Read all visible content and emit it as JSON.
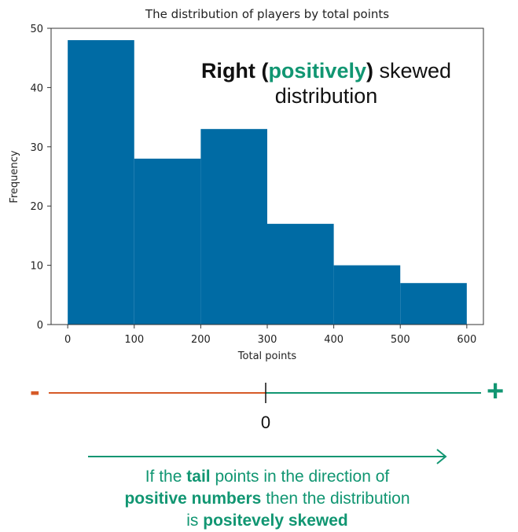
{
  "chart_data": {
    "type": "bar",
    "subtype": "histogram",
    "title": "The distribution of players by total points",
    "xlabel": "Total points",
    "ylabel": "Frequency",
    "bins": [
      [
        0,
        100
      ],
      [
        100,
        200
      ],
      [
        200,
        300
      ],
      [
        300,
        400
      ],
      [
        400,
        500
      ],
      [
        500,
        600
      ]
    ],
    "values": [
      48,
      28,
      33,
      17,
      10,
      7
    ],
    "xlim": [
      -25,
      625
    ],
    "ylim": [
      0,
      50
    ],
    "xticks": [
      0,
      100,
      200,
      300,
      400,
      500,
      600
    ],
    "yticks": [
      0,
      10,
      20,
      30,
      40,
      50
    ],
    "bar_color": "#006ba4",
    "grid": false
  },
  "annotation": {
    "word_right": "Right",
    "paren_open": "(",
    "word_positively": "positively",
    "paren_close": ")",
    "word_skewed": "skewed",
    "word_distribution": "distribution"
  },
  "number_line": {
    "minus": "-",
    "plus": "+",
    "zero": "0",
    "negative_color": "#d65a27",
    "positive_color": "#119672"
  },
  "caption": {
    "part1": "If the",
    "tail": "tail",
    "part2": "points in the direction of",
    "positive_numbers": "positive numbers",
    "part3": "then the distribution",
    "part4": "is",
    "positevely_skewed": "positevely skewed"
  }
}
